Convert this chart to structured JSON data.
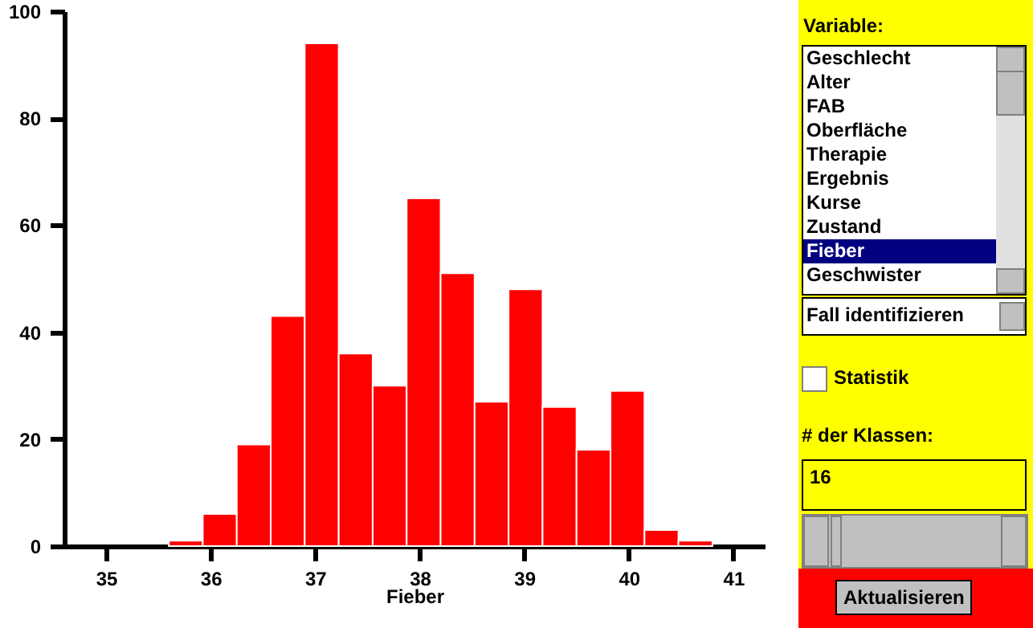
{
  "chart_data": {
    "type": "histogram",
    "xlabel": "Fieber",
    "color": "#ff0000",
    "bins": [
      35.6,
      35.925,
      36.25,
      36.575,
      36.9,
      37.225,
      37.55,
      37.875,
      38.2,
      38.525,
      38.85,
      39.175,
      39.5,
      39.825,
      40.15,
      40.475,
      40.8
    ],
    "values": [
      1,
      6,
      19,
      43,
      94,
      36,
      30,
      65,
      51,
      27,
      48,
      26,
      18,
      29,
      3,
      1
    ],
    "xlim": [
      34.6,
      41.3
    ],
    "xticks": [
      35,
      36,
      37,
      38,
      39,
      40,
      41
    ],
    "ylim": [
      0,
      100
    ],
    "yticks": [
      0,
      20,
      40,
      60,
      80,
      100
    ],
    "annotations": [
      "Variable:",
      "Geschlecht",
      "Alter",
      "FAB",
      "Oberfläche",
      "Therapie",
      "Ergebnis",
      "Kurse",
      "Zustand",
      "Fieber",
      "Geschwister",
      "Fall identifizieren",
      "Statistik",
      "# der Klassen:",
      "16",
      "Aktualisieren"
    ]
  }
}
